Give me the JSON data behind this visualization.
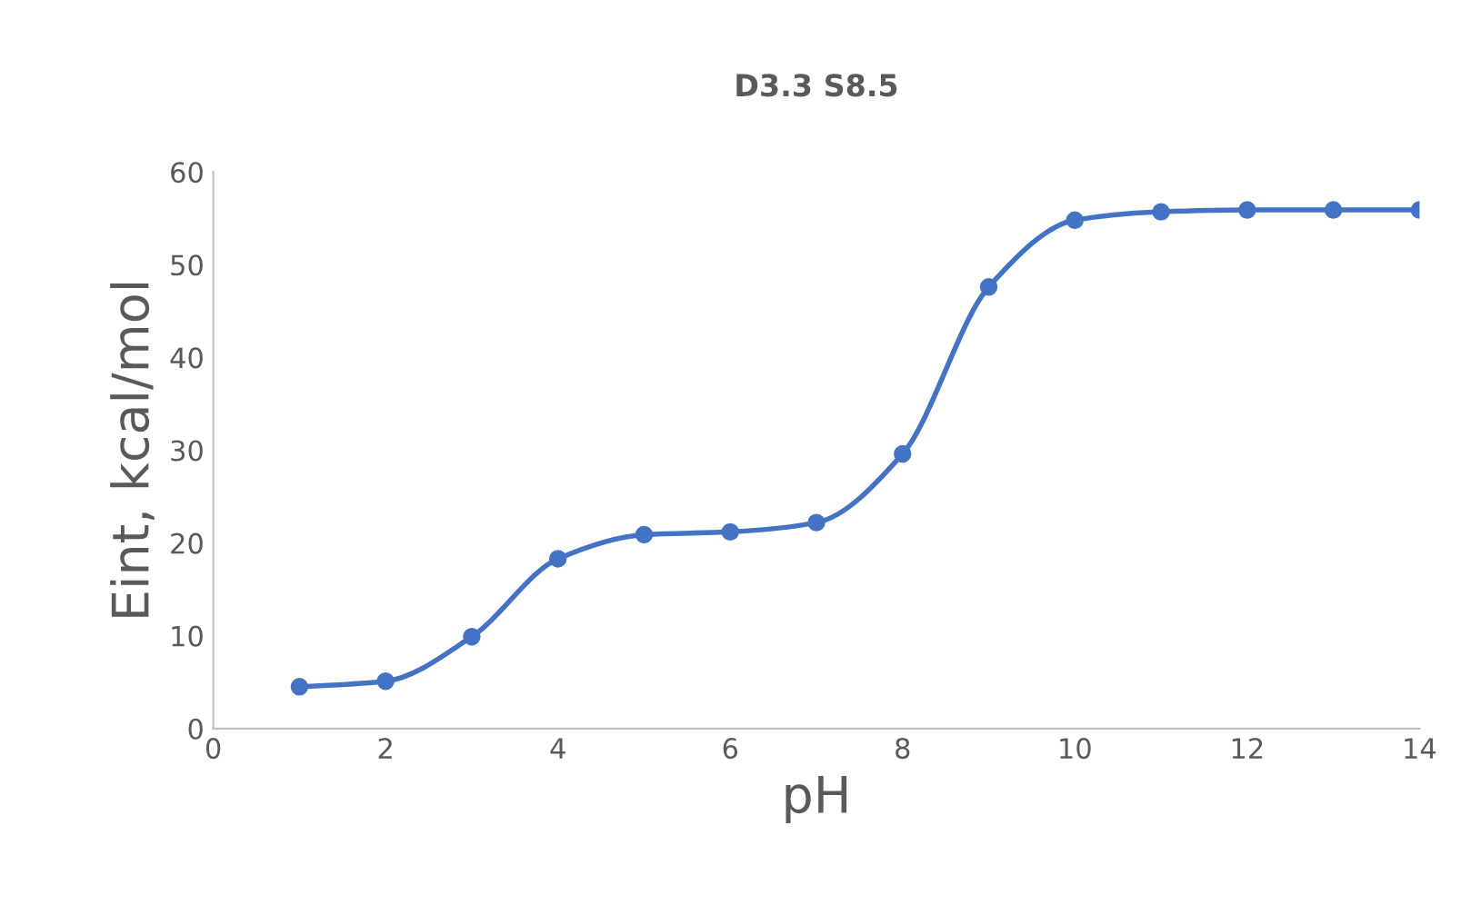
{
  "chart_data": {
    "type": "line",
    "title": "D3.3 S8.5",
    "xlabel": "pH",
    "ylabel": "Eint, kcal/mol",
    "x": [
      1,
      2,
      3,
      4,
      5,
      6,
      7,
      8,
      9,
      10,
      11,
      12,
      13,
      14
    ],
    "series": [
      {
        "color": "#4472c4",
        "values": [
          4.5,
          5.1,
          9.9,
          18.3,
          20.9,
          21.2,
          22.2,
          29.6,
          47.6,
          54.8,
          55.7,
          55.9,
          55.9,
          55.9
        ]
      }
    ],
    "xlim": [
      0,
      14
    ],
    "xticks": [
      0,
      2,
      4,
      6,
      8,
      10,
      12,
      14
    ],
    "ylim": [
      0,
      60
    ],
    "yticks": [
      0,
      10,
      20,
      30,
      40,
      50,
      60
    ],
    "grid": false,
    "legend": false,
    "marker": "circle",
    "line_style": "solid"
  }
}
